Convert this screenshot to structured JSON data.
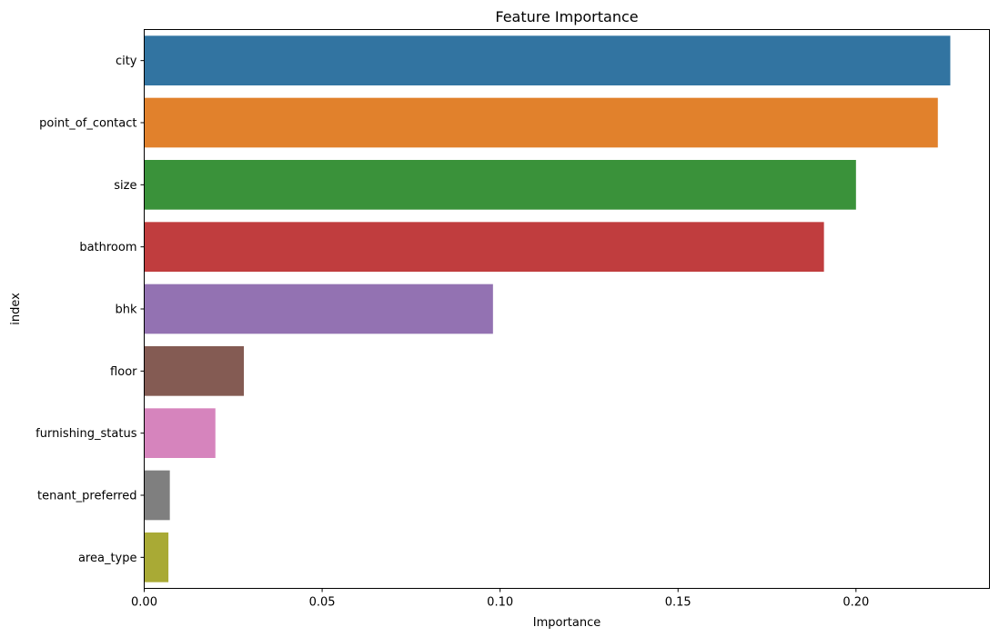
{
  "chart_data": {
    "type": "bar",
    "orientation": "horizontal",
    "title": "Feature Importance",
    "xlabel": "Importance",
    "ylabel": "index",
    "categories": [
      "city",
      "point_of_contact",
      "size",
      "bathroom",
      "bhk",
      "floor",
      "furnishing_status",
      "tenant_preferred",
      "area_type"
    ],
    "values": [
      0.2265,
      0.223,
      0.2,
      0.191,
      0.098,
      0.028,
      0.02,
      0.0072,
      0.0068
    ],
    "colors": [
      "#3274a1",
      "#e1812c",
      "#3a923a",
      "#c03d3e",
      "#9372b2",
      "#845b53",
      "#d684bd",
      "#7f7f7f",
      "#a9aa35"
    ],
    "xlim": [
      0,
      0.2375
    ],
    "xticks": [
      "0.00",
      "0.05",
      "0.10",
      "0.15",
      "0.20"
    ],
    "xtick_values": [
      0,
      0.05,
      0.1,
      0.15,
      0.2
    ],
    "grid": false,
    "legend": "none"
  }
}
